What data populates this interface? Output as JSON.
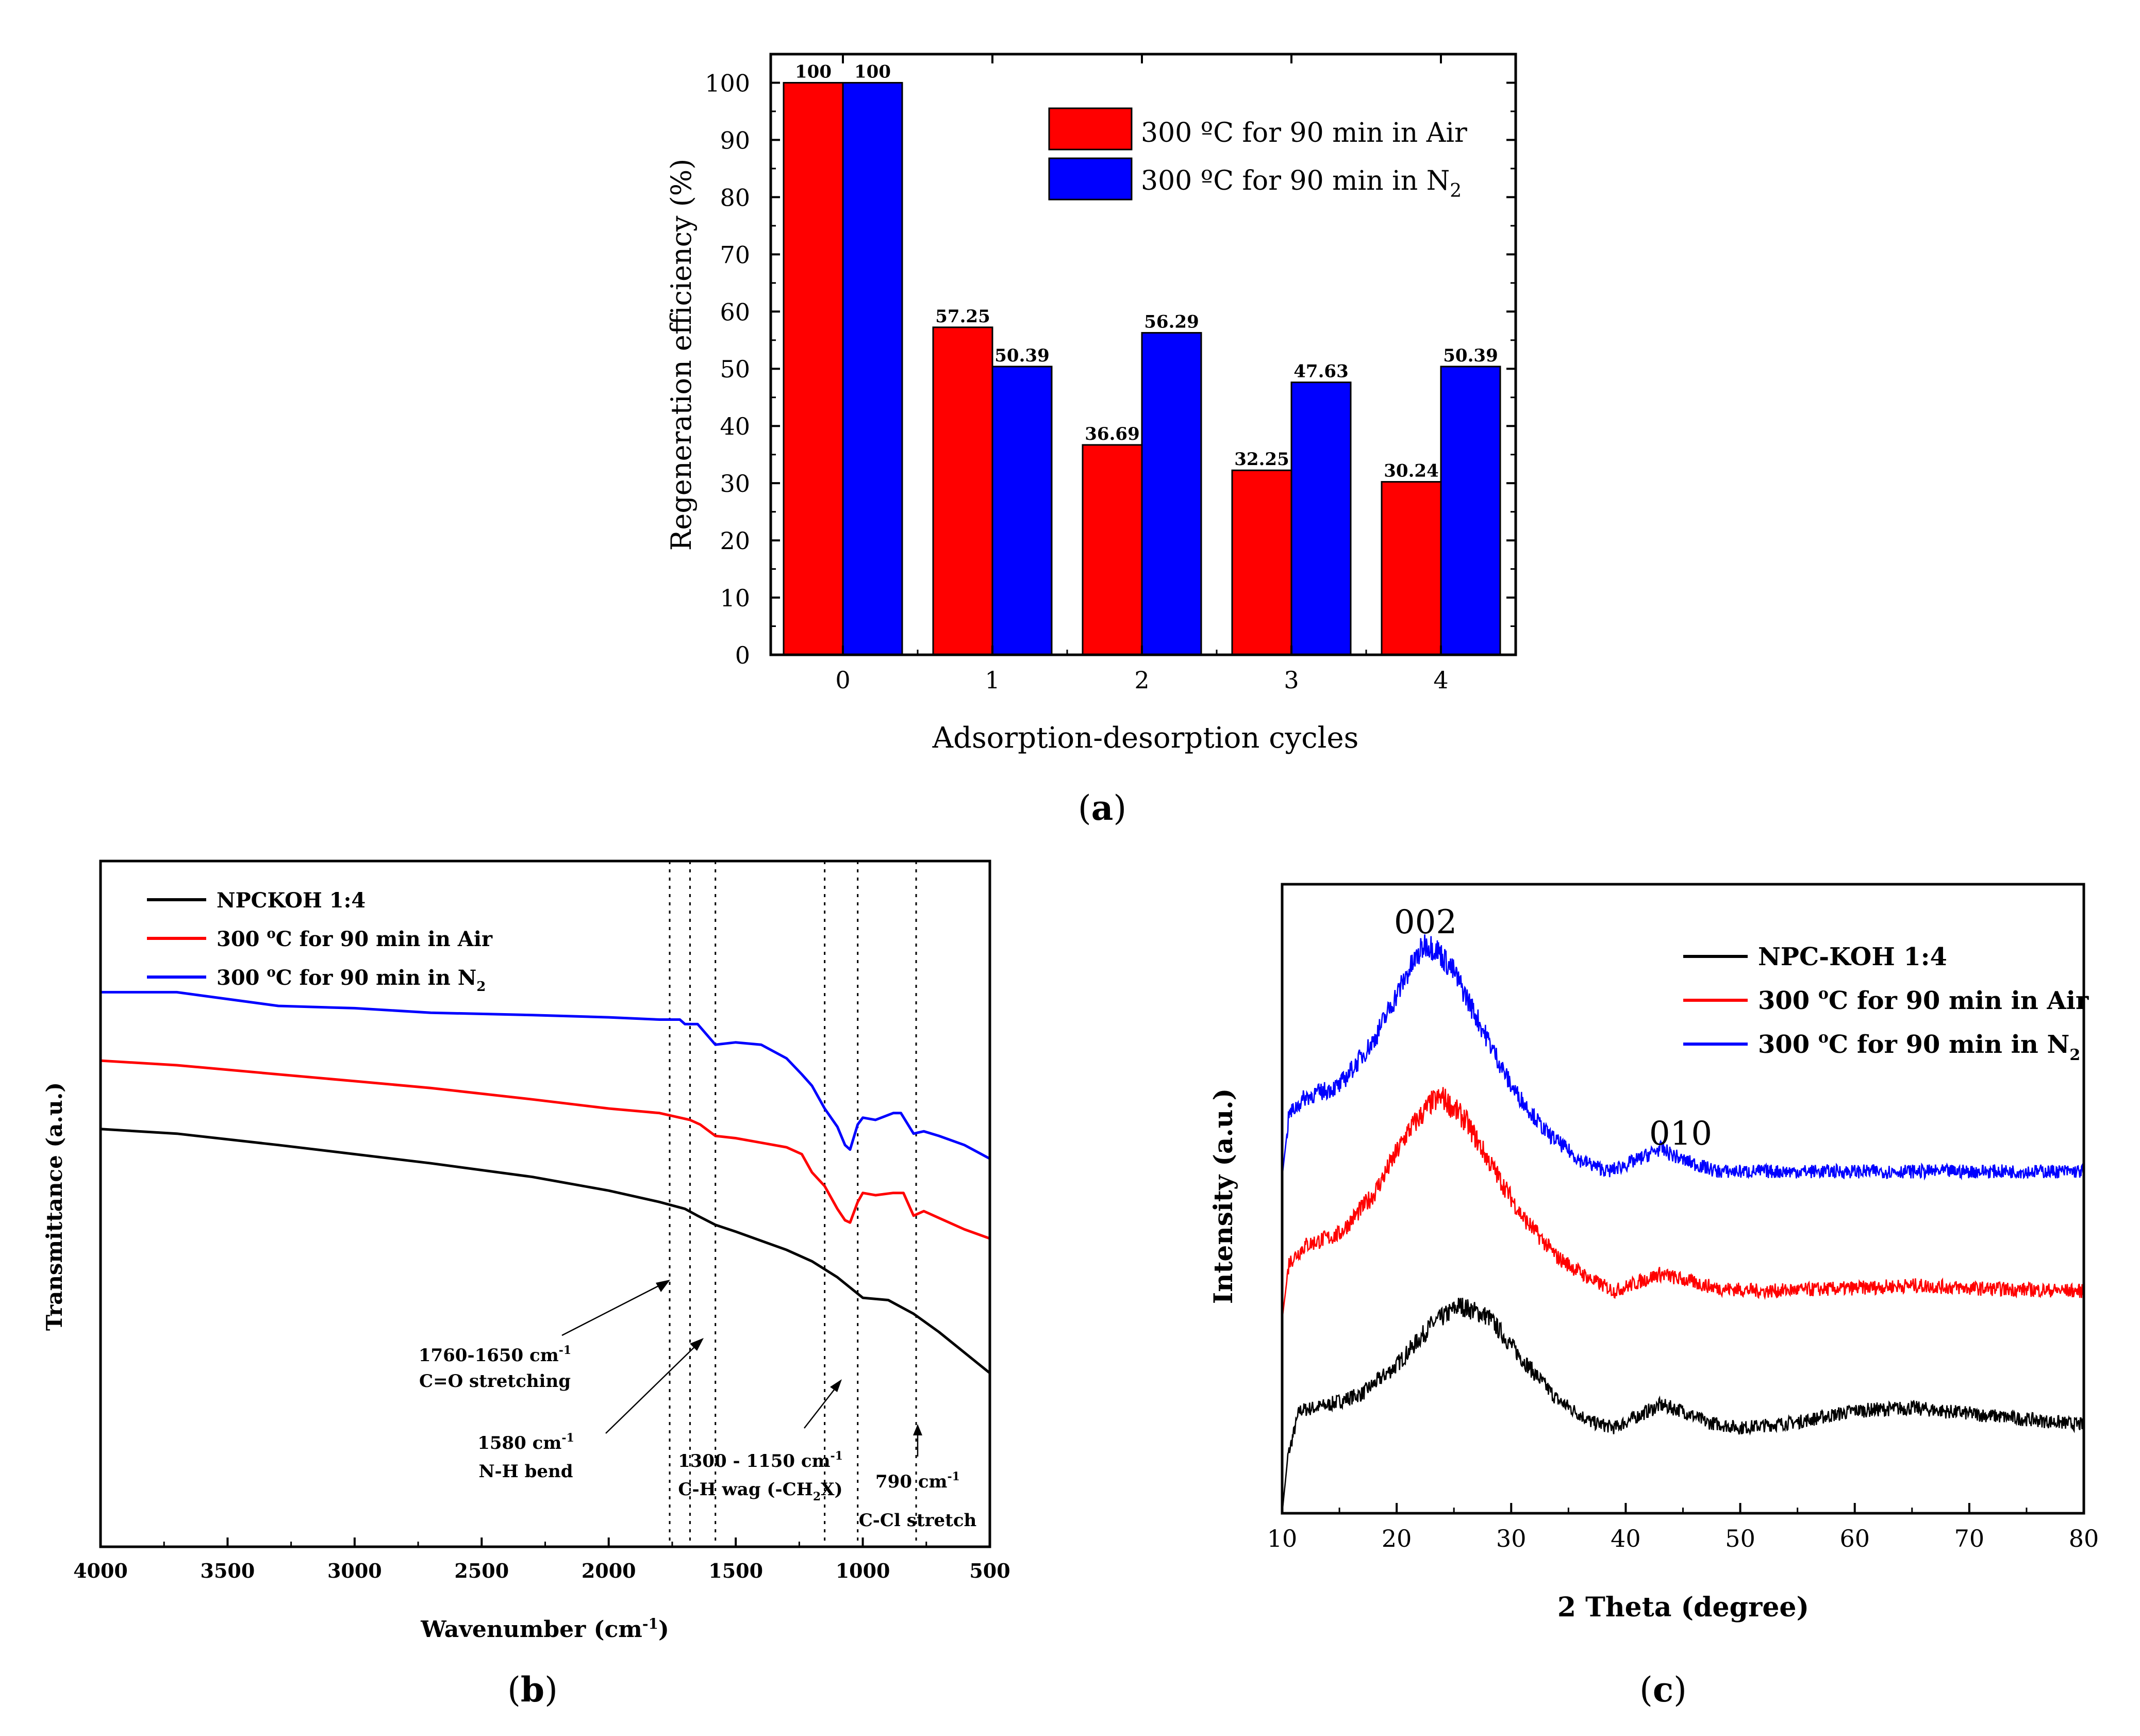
{
  "chart_data": [
    {
      "id": "a",
      "panel_label": "(a)",
      "type": "bar",
      "title": "",
      "xlabel": "Adsorption-desorption cycles",
      "ylabel": "Regeneration efficiency (%)",
      "categories": [
        "0",
        "1",
        "2",
        "3",
        "4"
      ],
      "ylim": [
        0,
        105
      ],
      "yticks": [
        0,
        10,
        20,
        30,
        40,
        50,
        60,
        70,
        80,
        90,
        100
      ],
      "series": [
        {
          "name": "300 ºC for 90 min in Air",
          "color": "#ff0000",
          "values": [
            100,
            57.25,
            36.69,
            32.25,
            30.24
          ],
          "labels": [
            "100",
            "57.25",
            "36.69",
            "32.25",
            "30.24"
          ]
        },
        {
          "name": "300 ºC for 90 min in N2",
          "color": "#0000ff",
          "values": [
            100,
            50.39,
            56.29,
            47.63,
            50.39
          ],
          "labels": [
            "100",
            "50.39",
            "56.29",
            "47.63",
            "50.39"
          ]
        }
      ],
      "legend": {
        "position": "top-right",
        "entries": [
          {
            "text": "300 ºC for 90 min in Air",
            "sub": ""
          },
          {
            "text": "300 ºC for 90 min in N",
            "sub": "2"
          }
        ]
      }
    },
    {
      "id": "b",
      "panel_label": "(b)",
      "type": "line",
      "xlabel": "Wavenumber (cm",
      "xlabel_sup": "-1",
      "xlabel_end": ")",
      "ylabel": "Transmittance (a.u.)",
      "xlim": [
        4000,
        500
      ],
      "xticks": [
        4000,
        3500,
        3000,
        2500,
        2000,
        1500,
        1000,
        500
      ],
      "ylim": [
        0,
        1
      ],
      "series": [
        {
          "name": "NPCKOH 1:4",
          "color": "#000000",
          "points": [
            [
              4000,
              0.735
            ],
            [
              3700,
              0.725
            ],
            [
              3300,
              0.7
            ],
            [
              3000,
              0.68
            ],
            [
              2700,
              0.66
            ],
            [
              2300,
              0.63
            ],
            [
              2000,
              0.6
            ],
            [
              1800,
              0.575
            ],
            [
              1700,
              0.56
            ],
            [
              1650,
              0.545
            ],
            [
              1580,
              0.525
            ],
            [
              1500,
              0.51
            ],
            [
              1400,
              0.49
            ],
            [
              1300,
              0.47
            ],
            [
              1200,
              0.445
            ],
            [
              1100,
              0.41
            ],
            [
              1000,
              0.365
            ],
            [
              900,
              0.36
            ],
            [
              800,
              0.33
            ],
            [
              700,
              0.29
            ],
            [
              600,
              0.245
            ],
            [
              500,
              0.2
            ]
          ]
        },
        {
          "name": "300 oC for 90 min in Air",
          "color": "#ff0000",
          "points": [
            [
              4000,
              0.885
            ],
            [
              3700,
              0.875
            ],
            [
              3300,
              0.855
            ],
            [
              3000,
              0.84
            ],
            [
              2700,
              0.825
            ],
            [
              2300,
              0.8
            ],
            [
              2000,
              0.78
            ],
            [
              1800,
              0.77
            ],
            [
              1720,
              0.76
            ],
            [
              1680,
              0.755
            ],
            [
              1640,
              0.745
            ],
            [
              1580,
              0.72
            ],
            [
              1500,
              0.715
            ],
            [
              1400,
              0.705
            ],
            [
              1300,
              0.695
            ],
            [
              1240,
              0.68
            ],
            [
              1200,
              0.64
            ],
            [
              1150,
              0.61
            ],
            [
              1100,
              0.56
            ],
            [
              1070,
              0.535
            ],
            [
              1050,
              0.53
            ],
            [
              1020,
              0.575
            ],
            [
              1000,
              0.595
            ],
            [
              950,
              0.59
            ],
            [
              880,
              0.595
            ],
            [
              840,
              0.595
            ],
            [
              800,
              0.545
            ],
            [
              760,
              0.555
            ],
            [
              700,
              0.54
            ],
            [
              600,
              0.515
            ],
            [
              500,
              0.495
            ]
          ]
        },
        {
          "name": "300 oC for 90 min in N2",
          "color": "#0000ff",
          "points": [
            [
              4000,
              1.035
            ],
            [
              3700,
              1.035
            ],
            [
              3300,
              1.005
            ],
            [
              3000,
              1.0
            ],
            [
              2700,
              0.99
            ],
            [
              2300,
              0.985
            ],
            [
              2000,
              0.98
            ],
            [
              1800,
              0.975
            ],
            [
              1720,
              0.975
            ],
            [
              1700,
              0.965
            ],
            [
              1650,
              0.965
            ],
            [
              1580,
              0.92
            ],
            [
              1500,
              0.925
            ],
            [
              1400,
              0.92
            ],
            [
              1300,
              0.89
            ],
            [
              1240,
              0.855
            ],
            [
              1200,
              0.83
            ],
            [
              1150,
              0.78
            ],
            [
              1100,
              0.74
            ],
            [
              1070,
              0.7
            ],
            [
              1050,
              0.69
            ],
            [
              1020,
              0.745
            ],
            [
              1000,
              0.76
            ],
            [
              950,
              0.755
            ],
            [
              880,
              0.77
            ],
            [
              850,
              0.77
            ],
            [
              800,
              0.725
            ],
            [
              760,
              0.73
            ],
            [
              700,
              0.72
            ],
            [
              600,
              0.7
            ],
            [
              500,
              0.67
            ]
          ]
        }
      ],
      "vlines": [
        1760,
        1680,
        1580,
        1150,
        1020,
        790
      ],
      "annotations": [
        {
          "line1": "1760-1650  cm",
          "sup1": "-1",
          "line2": "C=O stretching"
        },
        {
          "line1": "1580 cm",
          "sup1": "-1",
          "line2": "N-H bend"
        },
        {
          "line1": "1300 - 1150 cm",
          "sup1": "-1",
          "line2": "C-H wag (-CH",
          "sub2": "2",
          "line2_end": "X)"
        },
        {
          "line1": "790  cm",
          "sup1": "-1",
          "line2": "C-Cl stretch"
        }
      ],
      "legend": {
        "position": "top-left",
        "entries": [
          {
            "text": "NPCKOH 1:4",
            "sup": "",
            "tail": "",
            "sub": ""
          },
          {
            "text": "300 ",
            "sup": "o",
            "tail": "C for 90 min in Air",
            "sub": ""
          },
          {
            "text": "300 ",
            "sup": "o",
            "tail": "C for 90 min in N",
            "sub": "2"
          }
        ]
      }
    },
    {
      "id": "c",
      "panel_label": "(c)",
      "type": "line",
      "xlabel": "2 Theta (degree)",
      "ylabel": "Intensity (a.u.)",
      "xlim": [
        10,
        80
      ],
      "xticks": [
        10,
        20,
        30,
        40,
        50,
        60,
        70,
        80
      ],
      "ylim": [
        0,
        1
      ],
      "peak_labels": [
        {
          "text": "002",
          "x": 23
        },
        {
          "text": "010",
          "x": 44
        }
      ],
      "series": [
        {
          "name": "NPC-KOH 1:4",
          "color": "#000000",
          "points": [
            [
              10,
              0.0
            ],
            [
              10.5,
              0.1
            ],
            [
              11.5,
              0.18
            ],
            [
              14,
              0.19
            ],
            [
              17,
              0.21
            ],
            [
              20,
              0.26
            ],
            [
              23,
              0.33
            ],
            [
              25.5,
              0.365
            ],
            [
              28,
              0.345
            ],
            [
              31,
              0.27
            ],
            [
              34,
              0.2
            ],
            [
              37,
              0.16
            ],
            [
              39,
              0.15
            ],
            [
              41,
              0.17
            ],
            [
              43,
              0.19
            ],
            [
              45,
              0.18
            ],
            [
              47,
              0.16
            ],
            [
              50,
              0.15
            ],
            [
              55,
              0.16
            ],
            [
              60,
              0.18
            ],
            [
              65,
              0.185
            ],
            [
              70,
              0.175
            ],
            [
              75,
              0.165
            ],
            [
              80,
              0.155
            ]
          ]
        },
        {
          "name": "300 oC for 90 min in Air",
          "color": "#ff0000",
          "points": [
            [
              10,
              0.34
            ],
            [
              10.6,
              0.44
            ],
            [
              12,
              0.47
            ],
            [
              15,
              0.49
            ],
            [
              18,
              0.56
            ],
            [
              21,
              0.67
            ],
            [
              23,
              0.72
            ],
            [
              24,
              0.73
            ],
            [
              26,
              0.69
            ],
            [
              28,
              0.62
            ],
            [
              31,
              0.52
            ],
            [
              34,
              0.45
            ],
            [
              37,
              0.41
            ],
            [
              39,
              0.39
            ],
            [
              41,
              0.405
            ],
            [
              43,
              0.42
            ],
            [
              45,
              0.41
            ],
            [
              48,
              0.395
            ],
            [
              52,
              0.39
            ],
            [
              60,
              0.395
            ],
            [
              65,
              0.4
            ],
            [
              70,
              0.395
            ],
            [
              80,
              0.39
            ]
          ]
        },
        {
          "name": "300 oC for 90 min in N2",
          "color": "#0000ff",
          "points": [
            [
              10,
              0.59
            ],
            [
              10.6,
              0.7
            ],
            [
              12,
              0.73
            ],
            [
              15,
              0.75
            ],
            [
              18,
              0.83
            ],
            [
              21,
              0.95
            ],
            [
              22.5,
              1.0
            ],
            [
              23.5,
              0.99
            ],
            [
              25,
              0.95
            ],
            [
              27,
              0.87
            ],
            [
              30,
              0.75
            ],
            [
              33,
              0.67
            ],
            [
              36,
              0.62
            ],
            [
              38.5,
              0.6
            ],
            [
              41,
              0.62
            ],
            [
              43,
              0.64
            ],
            [
              45,
              0.62
            ],
            [
              48,
              0.6
            ],
            [
              55,
              0.6
            ],
            [
              65,
              0.6
            ],
            [
              80,
              0.6
            ]
          ]
        }
      ],
      "legend": {
        "position": "top-right",
        "entries": [
          {
            "text": "NPC-KOH 1:4",
            "sup": "",
            "tail": "",
            "sub": ""
          },
          {
            "text": "300 ",
            "sup": "o",
            "tail": "C for 90 min in Air",
            "sub": ""
          },
          {
            "text": "300 ",
            "sup": "o",
            "tail": "C for 90 min in N",
            "sub": "2"
          }
        ]
      }
    }
  ]
}
